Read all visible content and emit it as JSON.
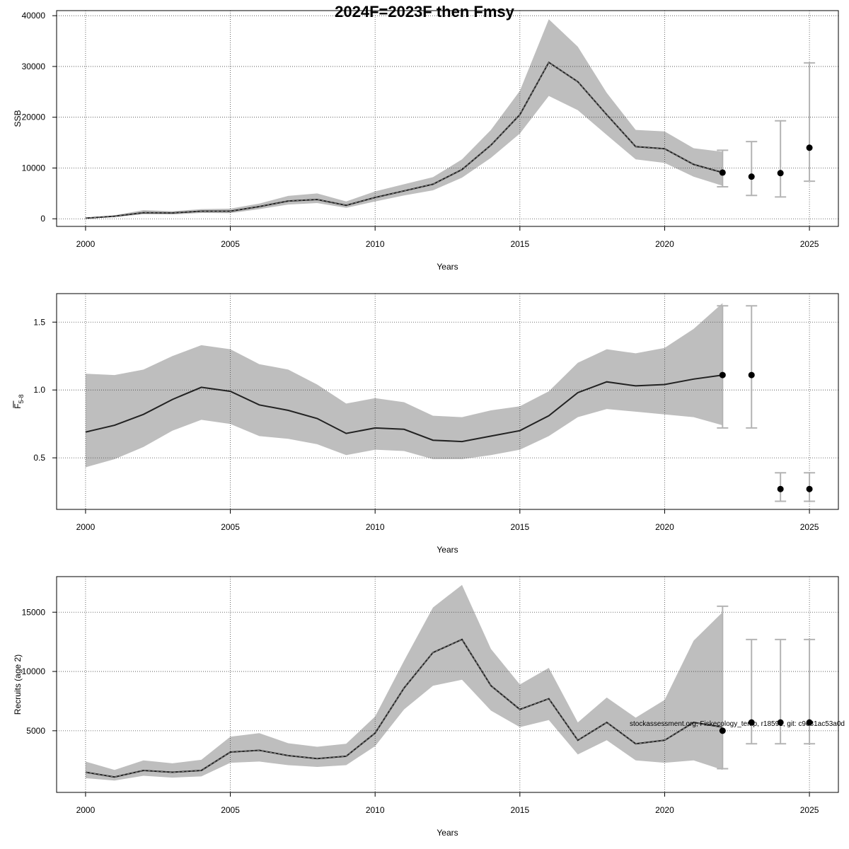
{
  "title": "2024F=2023F then Fmsy",
  "footnote": "stockassessment.org, Fiskecology_temp, r18591, git: c9e81ac53a0d",
  "colors": {
    "band": "#bebebe",
    "line": "#222222",
    "error_bar": "#b4b4b4",
    "point": "#000000",
    "grid": "#444444"
  },
  "chart_data": [
    {
      "type": "line",
      "ylabel": "SSB",
      "xlabel": "Years",
      "xlim": [
        1999,
        2026
      ],
      "ylim": [
        -1500,
        41000
      ],
      "xticks": [
        2000,
        2005,
        2010,
        2015,
        2020,
        2025
      ],
      "yticks": [
        0,
        10000,
        20000,
        30000,
        40000
      ],
      "ytick_labels": [
        "0",
        "10000",
        "20000",
        "30000",
        "40000"
      ],
      "grid": true,
      "line_dash": true,
      "series": [
        {
          "x": [
            2000,
            2001,
            2002,
            2003,
            2004,
            2005,
            2006,
            2007,
            2008,
            2009,
            2010,
            2011,
            2012,
            2013,
            2014,
            2015,
            2016,
            2017,
            2018,
            2019,
            2020,
            2021,
            2022
          ],
          "y": [
            120,
            500,
            1200,
            1150,
            1500,
            1500,
            2400,
            3500,
            3800,
            2650,
            4200,
            5500,
            6800,
            9700,
            14500,
            20500,
            30800,
            27000,
            20500,
            14200,
            13800,
            10700,
            9100
          ],
          "lower": [
            60,
            350,
            900,
            850,
            1150,
            1100,
            1900,
            2800,
            3100,
            2150,
            3400,
            4600,
            5600,
            8100,
            12000,
            16800,
            24200,
            21400,
            16500,
            11700,
            11000,
            8300,
            6500
          ],
          "upper": [
            200,
            700,
            1700,
            1500,
            1900,
            2000,
            3000,
            4500,
            5000,
            3400,
            5400,
            6800,
            8200,
            11700,
            17500,
            25200,
            39300,
            33900,
            24800,
            17500,
            17200,
            13900,
            13200
          ]
        }
      ],
      "projection": [
        {
          "x": 2022,
          "y": 9100,
          "lower": 6300,
          "upper": 13500
        },
        {
          "x": 2023,
          "y": 8300,
          "lower": 4600,
          "upper": 15200
        },
        {
          "x": 2024,
          "y": 9000,
          "lower": 4300,
          "upper": 19300
        },
        {
          "x": 2025,
          "y": 14000,
          "lower": 7400,
          "upper": 30700
        }
      ]
    },
    {
      "type": "line",
      "ylabel_main": "F",
      "ylabel_sub": "5-8",
      "xlabel": "Years",
      "xlim": [
        1999,
        2026
      ],
      "ylim": [
        0.12,
        1.71
      ],
      "xticks": [
        2000,
        2005,
        2010,
        2015,
        2020,
        2025
      ],
      "yticks": [
        0.5,
        1.0,
        1.5
      ],
      "ytick_labels": [
        "0.5",
        "1.0",
        "1.5"
      ],
      "grid": true,
      "line_dash": false,
      "series": [
        {
          "x": [
            2000,
            2001,
            2002,
            2003,
            2004,
            2005,
            2006,
            2007,
            2008,
            2009,
            2010,
            2011,
            2012,
            2013,
            2014,
            2015,
            2016,
            2017,
            2018,
            2019,
            2020,
            2021,
            2022
          ],
          "y": [
            0.69,
            0.74,
            0.82,
            0.93,
            1.02,
            0.99,
            0.89,
            0.85,
            0.79,
            0.68,
            0.72,
            0.71,
            0.63,
            0.62,
            0.66,
            0.7,
            0.81,
            0.98,
            1.06,
            1.03,
            1.04,
            1.08,
            1.11
          ],
          "lower": [
            0.43,
            0.49,
            0.58,
            0.7,
            0.78,
            0.75,
            0.66,
            0.64,
            0.6,
            0.52,
            0.56,
            0.55,
            0.49,
            0.49,
            0.52,
            0.56,
            0.66,
            0.8,
            0.86,
            0.84,
            0.82,
            0.8,
            0.74
          ],
          "upper": [
            1.12,
            1.11,
            1.15,
            1.25,
            1.33,
            1.3,
            1.19,
            1.15,
            1.04,
            0.9,
            0.94,
            0.91,
            0.81,
            0.8,
            0.85,
            0.88,
            0.99,
            1.2,
            1.3,
            1.27,
            1.31,
            1.45,
            1.64
          ]
        }
      ],
      "projection": [
        {
          "x": 2022,
          "y": 1.11,
          "lower": 0.72,
          "upper": 1.62
        },
        {
          "x": 2023,
          "y": 1.11,
          "lower": 0.72,
          "upper": 1.62
        },
        {
          "x": 2024,
          "y": 0.27,
          "lower": 0.18,
          "upper": 0.39
        },
        {
          "x": 2025,
          "y": 0.27,
          "lower": 0.18,
          "upper": 0.39
        }
      ]
    },
    {
      "type": "line",
      "ylabel": "Recruits (age 2)",
      "xlabel": "Years",
      "xlim": [
        1999,
        2026
      ],
      "ylim": [
        -200,
        18000
      ],
      "xticks": [
        2000,
        2005,
        2010,
        2015,
        2020,
        2025
      ],
      "yticks": [
        5000,
        10000,
        15000
      ],
      "ytick_labels": [
        "5000",
        "10000",
        "15000"
      ],
      "grid": true,
      "line_dash": true,
      "series": [
        {
          "x": [
            2000,
            2001,
            2002,
            2003,
            2004,
            2005,
            2006,
            2007,
            2008,
            2009,
            2010,
            2011,
            2012,
            2013,
            2014,
            2015,
            2016,
            2017,
            2018,
            2019,
            2020,
            2021,
            2022
          ],
          "y": [
            1500,
            1100,
            1650,
            1500,
            1650,
            3200,
            3350,
            2900,
            2650,
            2850,
            4800,
            8600,
            11600,
            12700,
            8800,
            6800,
            7700,
            4200,
            5700,
            3900,
            4200,
            5700,
            5300
          ],
          "lower": [
            1000,
            800,
            1200,
            1050,
            1150,
            2300,
            2400,
            2100,
            1950,
            2100,
            3700,
            6800,
            8800,
            9300,
            6700,
            5300,
            5900,
            3000,
            4200,
            2500,
            2300,
            2500,
            1700
          ],
          "upper": [
            2400,
            1700,
            2500,
            2250,
            2550,
            4500,
            4800,
            3950,
            3650,
            3900,
            6200,
            10900,
            15400,
            17300,
            11900,
            8900,
            10300,
            5700,
            7800,
            6100,
            7600,
            12600,
            15000
          ]
        }
      ],
      "projection": [
        {
          "x": 2022,
          "y": 5000,
          "lower": 1800,
          "upper": 15500
        },
        {
          "x": 2023,
          "y": 5700,
          "lower": 3900,
          "upper": 12700
        },
        {
          "x": 2024,
          "y": 5700,
          "lower": 3900,
          "upper": 12700
        },
        {
          "x": 2025,
          "y": 5700,
          "lower": 3900,
          "upper": 12700
        }
      ]
    }
  ]
}
